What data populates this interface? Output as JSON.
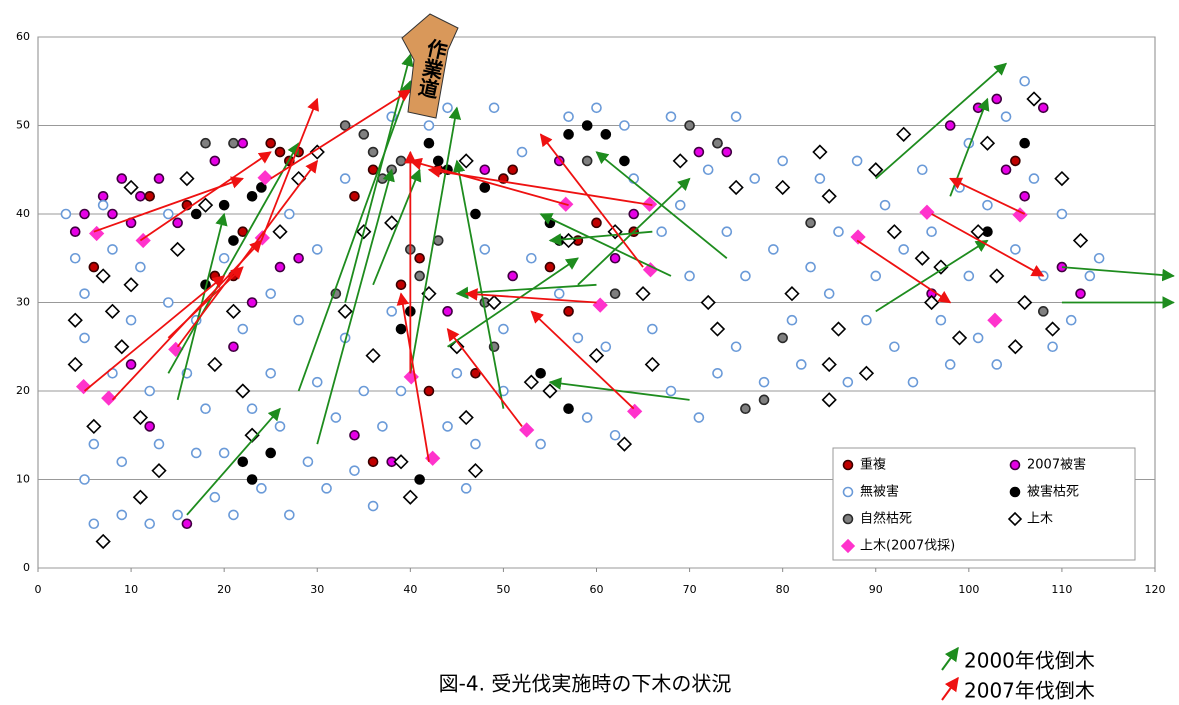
{
  "chart_data": {
    "type": "scatter",
    "title": "図-4. 受光伐実施時の下木の状況",
    "annotation": "作業道",
    "xlim": [
      0,
      120
    ],
    "ylim": [
      0,
      60
    ],
    "xticks": [
      0,
      10,
      20,
      30,
      40,
      50,
      60,
      70,
      80,
      90,
      100,
      110,
      120
    ],
    "yticks": [
      0,
      10,
      20,
      30,
      40,
      50,
      60
    ],
    "grid": true,
    "series": [
      {
        "name": "重複",
        "marker": "circle",
        "color": "#c00000",
        "edgecolor": "#3a0000",
        "x": [
          6,
          12,
          16,
          19,
          21,
          22,
          25,
          26,
          27,
          34,
          36,
          39,
          41,
          43,
          48,
          50,
          51,
          55,
          57,
          58,
          60,
          64,
          105,
          47,
          36,
          42,
          28
        ],
        "y": [
          34,
          42,
          41,
          33,
          33,
          38,
          48,
          47,
          46,
          42,
          45,
          32,
          35,
          45,
          43,
          44,
          45,
          34,
          29,
          37,
          39,
          38,
          46,
          22,
          12,
          20,
          47
        ]
      },
      {
        "name": "2007被害",
        "marker": "circle",
        "color": "#e600e6",
        "edgecolor": "#400040",
        "x": [
          4,
          5,
          7,
          8,
          9,
          10,
          11,
          13,
          15,
          19,
          22,
          23,
          21,
          16,
          12,
          10,
          26,
          28,
          34,
          38,
          44,
          48,
          51,
          56,
          62,
          64,
          71,
          73,
          74,
          96,
          98,
          101,
          103,
          106,
          108,
          110,
          112,
          104
        ],
        "y": [
          38,
          40,
          42,
          40,
          44,
          39,
          42,
          44,
          39,
          46,
          48,
          30,
          25,
          5,
          16,
          23,
          34,
          35,
          15,
          12,
          29,
          45,
          33,
          46,
          35,
          40,
          47,
          48,
          47,
          31,
          50,
          52,
          53,
          42,
          52,
          34,
          31,
          45
        ]
      },
      {
        "name": "無被害",
        "marker": "circle",
        "color": "#ffffff",
        "edgecolor": "#6a9ad8",
        "x": [
          3,
          4,
          5,
          5,
          6,
          5,
          6,
          7,
          8,
          8,
          9,
          9,
          10,
          11,
          12,
          12,
          13,
          14,
          14,
          15,
          16,
          17,
          17,
          18,
          19,
          20,
          20,
          21,
          22,
          23,
          24,
          25,
          25,
          26,
          27,
          27,
          28,
          29,
          30,
          30,
          31,
          32,
          33,
          33,
          34,
          35,
          36,
          37,
          38,
          38,
          39,
          42,
          44,
          44,
          45,
          46,
          47,
          48,
          49,
          50,
          50,
          52,
          53,
          54,
          56,
          57,
          58,
          59,
          60,
          61,
          62,
          63,
          64,
          66,
          67,
          68,
          68,
          69,
          70,
          71,
          72,
          73,
          74,
          75,
          75,
          76,
          77,
          78,
          79,
          80,
          81,
          82,
          83,
          84,
          85,
          86,
          87,
          88,
          89,
          90,
          91,
          92,
          93,
          94,
          95,
          96,
          97,
          98,
          99,
          100,
          100,
          101,
          102,
          103,
          104,
          105,
          106,
          107,
          108,
          109,
          110,
          111,
          113,
          114
        ],
        "y": [
          40,
          35,
          31,
          26,
          14,
          10,
          5,
          41,
          36,
          22,
          12,
          6,
          28,
          34,
          20,
          5,
          14,
          30,
          40,
          6,
          22,
          13,
          28,
          18,
          8,
          35,
          13,
          6,
          27,
          18,
          9,
          22,
          31,
          16,
          6,
          40,
          28,
          12,
          21,
          36,
          9,
          17,
          26,
          44,
          11,
          20,
          7,
          16,
          29,
          51,
          20,
          50,
          16,
          52,
          22,
          9,
          14,
          36,
          52,
          20,
          27,
          47,
          35,
          14,
          31,
          51,
          26,
          17,
          52,
          25,
          15,
          50,
          44,
          27,
          38,
          51,
          20,
          41,
          33,
          17,
          45,
          22,
          38,
          51,
          25,
          33,
          44,
          21,
          36,
          46,
          28,
          23,
          34,
          44,
          31,
          38,
          21,
          46,
          28,
          33,
          41,
          25,
          36,
          21,
          45,
          38,
          28,
          23,
          43,
          33,
          48,
          26,
          41,
          23,
          51,
          36,
          55,
          44,
          33,
          25,
          40,
          28,
          33,
          35
        ]
      },
      {
        "name": "被害枯死",
        "marker": "circle",
        "color": "#000000",
        "edgecolor": "#000000",
        "x": [
          17,
          18,
          20,
          21,
          23,
          24,
          22,
          23,
          25,
          39,
          40,
          41,
          42,
          43,
          44,
          47,
          48,
          55,
          56,
          57,
          59,
          61,
          63,
          57,
          54,
          102,
          106
        ],
        "y": [
          40,
          32,
          41,
          37,
          42,
          43,
          12,
          10,
          13,
          27,
          29,
          10,
          48,
          46,
          45,
          40,
          43,
          39,
          37,
          49,
          50,
          49,
          46,
          18,
          22,
          38,
          48
        ]
      },
      {
        "name": "自然枯死",
        "marker": "circle",
        "color": "#808080",
        "edgecolor": "#2a2a2a",
        "x": [
          18,
          21,
          33,
          35,
          36,
          37,
          38,
          39,
          40,
          41,
          43,
          49,
          48,
          59,
          62,
          70,
          73,
          83,
          76,
          78,
          80,
          108,
          32
        ],
        "y": [
          48,
          48,
          50,
          49,
          47,
          44,
          45,
          46,
          36,
          33,
          37,
          25,
          30,
          46,
          31,
          50,
          48,
          39,
          18,
          19,
          26,
          29,
          31
        ]
      },
      {
        "name": "上木",
        "marker": "diamond",
        "color": "#ffffff",
        "edgecolor": "#000000",
        "x": [
          4,
          4,
          6,
          7,
          7,
          8,
          9,
          10,
          10,
          11,
          11,
          13,
          15,
          16,
          18,
          19,
          21,
          22,
          23,
          26,
          28,
          30,
          33,
          35,
          36,
          38,
          39,
          40,
          42,
          45,
          46,
          46,
          47,
          49,
          53,
          55,
          57,
          60,
          62,
          63,
          65,
          66,
          69,
          72,
          73,
          75,
          80,
          81,
          84,
          85,
          85,
          85,
          86,
          90,
          92,
          93,
          95,
          97,
          99,
          101,
          102,
          103,
          105,
          106,
          107,
          109,
          110,
          112,
          96,
          89
        ],
        "y": [
          28,
          23,
          16,
          3,
          33,
          29,
          25,
          43,
          32,
          17,
          8,
          11,
          36,
          44,
          41,
          23,
          29,
          20,
          15,
          38,
          44,
          47,
          29,
          38,
          24,
          39,
          12,
          8,
          31,
          25,
          46,
          17,
          11,
          30,
          21,
          20,
          37,
          24,
          38,
          14,
          31,
          23,
          46,
          30,
          27,
          43,
          43,
          31,
          47,
          42,
          23,
          19,
          27,
          45,
          38,
          49,
          35,
          34,
          26,
          38,
          48,
          33,
          25,
          30,
          53,
          27,
          44,
          37,
          30,
          22
        ]
      },
      {
        "name": "上木(2007伐採)",
        "marker": "diamond",
        "color": "#ff33cc",
        "edgecolor": "#ff33cc",
        "x": [
          6.3,
          11.3,
          24.4,
          24.1,
          14.8,
          4.9,
          7.6,
          40.1,
          42.4,
          52.5,
          56.7,
          65.7,
          65.8,
          60.4,
          64.1,
          88.1,
          95.5,
          102.8,
          105.5
        ],
        "y": [
          37.8,
          37,
          44.1,
          37.3,
          24.7,
          20.5,
          19.2,
          21.6,
          12.4,
          15.6,
          41.1,
          41.1,
          33.7,
          29.7,
          17.7,
          37.4,
          40.2,
          28,
          39.9
        ]
      }
    ],
    "arrows": [
      {
        "name": "2000年伐倒木",
        "color": "#1e8c1e",
        "segments": [
          [
            15,
            19,
            20,
            40
          ],
          [
            14,
            22,
            28,
            48
          ],
          [
            16,
            6,
            26,
            18
          ],
          [
            28,
            20,
            40,
            55
          ],
          [
            30,
            14,
            38,
            45
          ],
          [
            33,
            30,
            40,
            58
          ],
          [
            36,
            32,
            41,
            45
          ],
          [
            40,
            22,
            45,
            52
          ],
          [
            44,
            25,
            58,
            35
          ],
          [
            50,
            18,
            45,
            46
          ],
          [
            60,
            32,
            45,
            31
          ],
          [
            70,
            19,
            55,
            21
          ],
          [
            68,
            33,
            54,
            40
          ],
          [
            66,
            38,
            55,
            37
          ],
          [
            74,
            35,
            60,
            47
          ],
          [
            58,
            32,
            70,
            44
          ],
          [
            90,
            44,
            104,
            57
          ],
          [
            90,
            29,
            102,
            37
          ],
          [
            110,
            34,
            122,
            33
          ],
          [
            110,
            30,
            122,
            30
          ],
          [
            98,
            42,
            102,
            53
          ]
        ]
      },
      {
        "name": "2007年伐倒木",
        "color": "#ee1111",
        "segments": [
          [
            6,
            38,
            22,
            44
          ],
          [
            11,
            37,
            25,
            47
          ],
          [
            14,
            26,
            22,
            34
          ],
          [
            5,
            20,
            20,
            33
          ],
          [
            8,
            19,
            24,
            37
          ],
          [
            15,
            25,
            30,
            46
          ],
          [
            24,
            37,
            30,
            53
          ],
          [
            25,
            44,
            40,
            54
          ],
          [
            42,
            12,
            39,
            31
          ],
          [
            40,
            22,
            40,
            47
          ],
          [
            52,
            16,
            44,
            27
          ],
          [
            60,
            30,
            46,
            31
          ],
          [
            65,
            34,
            54,
            49
          ],
          [
            57,
            41,
            40,
            46
          ],
          [
            66,
            41,
            42,
            45
          ],
          [
            64,
            18,
            53,
            29
          ],
          [
            88,
            37,
            98,
            30
          ],
          [
            96,
            40,
            108,
            33
          ],
          [
            106,
            40,
            98,
            44
          ]
        ]
      }
    ]
  }
}
